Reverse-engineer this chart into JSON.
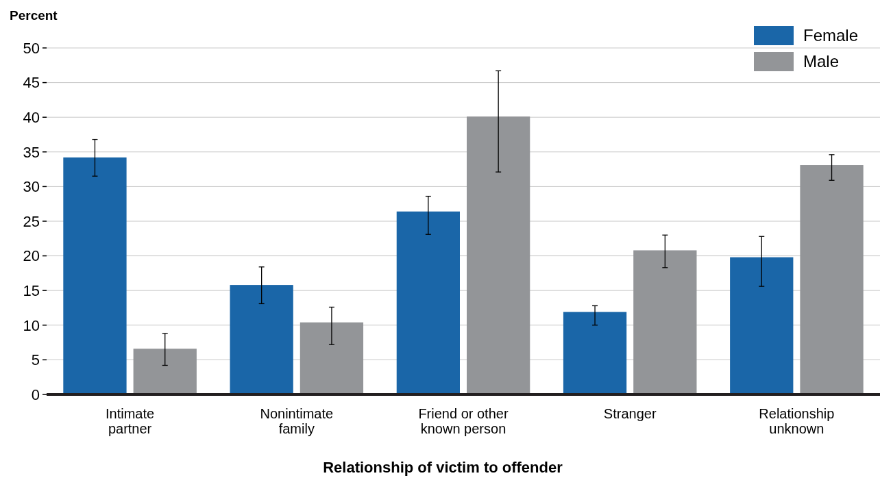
{
  "chart_data": {
    "type": "bar",
    "ylabel": "Percent",
    "xlabel": "Relationship of victim to offender",
    "categories": [
      "Intimate partner",
      "Nonintimate family",
      "Friend or other known person",
      "Stranger",
      "Relationship unknown"
    ],
    "series": [
      {
        "name": "Female",
        "color": "#1a66a8",
        "values": [
          34.2,
          15.8,
          26.4,
          11.9,
          19.8
        ],
        "errors": [
          [
            31.5,
            36.8
          ],
          [
            13.1,
            18.4
          ],
          [
            23.1,
            28.6
          ],
          [
            10.0,
            12.8
          ],
          [
            15.6,
            22.8
          ]
        ]
      },
      {
        "name": "Male",
        "color": "#939598",
        "values": [
          6.6,
          10.4,
          40.1,
          20.8,
          33.1
        ],
        "errors": [
          [
            4.2,
            8.8
          ],
          [
            7.2,
            12.6
          ],
          [
            32.1,
            46.7
          ],
          [
            18.3,
            23.0
          ],
          [
            30.9,
            34.6
          ]
        ]
      }
    ],
    "ylim": [
      0,
      50
    ],
    "yticks": [
      0,
      5,
      10,
      15,
      20,
      25,
      30,
      35,
      40,
      45,
      50
    ],
    "grid": "y",
    "legend": "top right"
  }
}
